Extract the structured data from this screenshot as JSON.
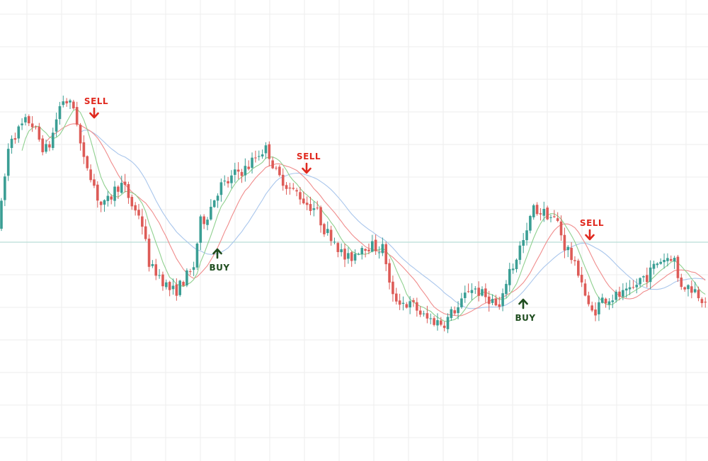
{
  "chart_data": {
    "type": "candlestick",
    "title": "",
    "xlabel": "",
    "ylabel": "",
    "grid": true,
    "ylim": [
      0,
      651
    ],
    "colors": {
      "bull": "#3a9e94",
      "bear": "#dd5b57",
      "ma_fast": "#8fd08f",
      "ma_mid": "#f08c8c",
      "ma_slow": "#a9c6ec",
      "level_line": "#b9ddd6",
      "buy": "#1f4d1f",
      "sell": "#e0291f",
      "grid": "#eeeeee"
    },
    "series": [
      {
        "name": "",
        "kind": "moving-average-fast",
        "color": "#8fd08f"
      },
      {
        "name": "",
        "kind": "moving-average-mid",
        "color": "#f08c8c"
      },
      {
        "name": "",
        "kind": "moving-average-slow",
        "color": "#a9c6ec"
      }
    ],
    "horizontal_level": 309,
    "anchors": [
      [
        0,
        330
      ],
      [
        22,
        460
      ],
      [
        45,
        480
      ],
      [
        70,
        440
      ],
      [
        95,
        510
      ],
      [
        108,
        500
      ],
      [
        125,
        420
      ],
      [
        150,
        360
      ],
      [
        175,
        390
      ],
      [
        200,
        350
      ],
      [
        220,
        270
      ],
      [
        250,
        240
      ],
      [
        275,
        265
      ],
      [
        290,
        340
      ],
      [
        320,
        390
      ],
      [
        345,
        410
      ],
      [
        380,
        440
      ],
      [
        400,
        400
      ],
      [
        420,
        380
      ],
      [
        445,
        360
      ],
      [
        470,
        320
      ],
      [
        495,
        285
      ],
      [
        520,
        305
      ],
      [
        545,
        300
      ],
      [
        560,
        230
      ],
      [
        585,
        220
      ],
      [
        610,
        200
      ],
      [
        630,
        195
      ],
      [
        650,
        215
      ],
      [
        670,
        245
      ],
      [
        695,
        230
      ],
      [
        710,
        215
      ],
      [
        725,
        270
      ],
      [
        745,
        310
      ],
      [
        758,
        355
      ],
      [
        775,
        350
      ],
      [
        790,
        340
      ],
      [
        805,
        300
      ],
      [
        820,
        270
      ],
      [
        840,
        210
      ],
      [
        860,
        230
      ],
      [
        890,
        235
      ],
      [
        915,
        260
      ],
      [
        940,
        285
      ],
      [
        955,
        290
      ],
      [
        965,
        250
      ],
      [
        980,
        245
      ],
      [
        1000,
        230
      ]
    ],
    "signals": [
      {
        "type": "sell",
        "label": "SELL",
        "x": 133,
        "y": 488
      },
      {
        "type": "sell",
        "label": "SELL",
        "x": 433,
        "y": 410
      },
      {
        "type": "sell",
        "label": "SELL",
        "x": 833,
        "y": 316
      },
      {
        "type": "buy",
        "label": "BUY",
        "x": 307,
        "y": 300
      },
      {
        "type": "buy",
        "label": "BUY",
        "x": 739,
        "y": 229
      }
    ]
  }
}
